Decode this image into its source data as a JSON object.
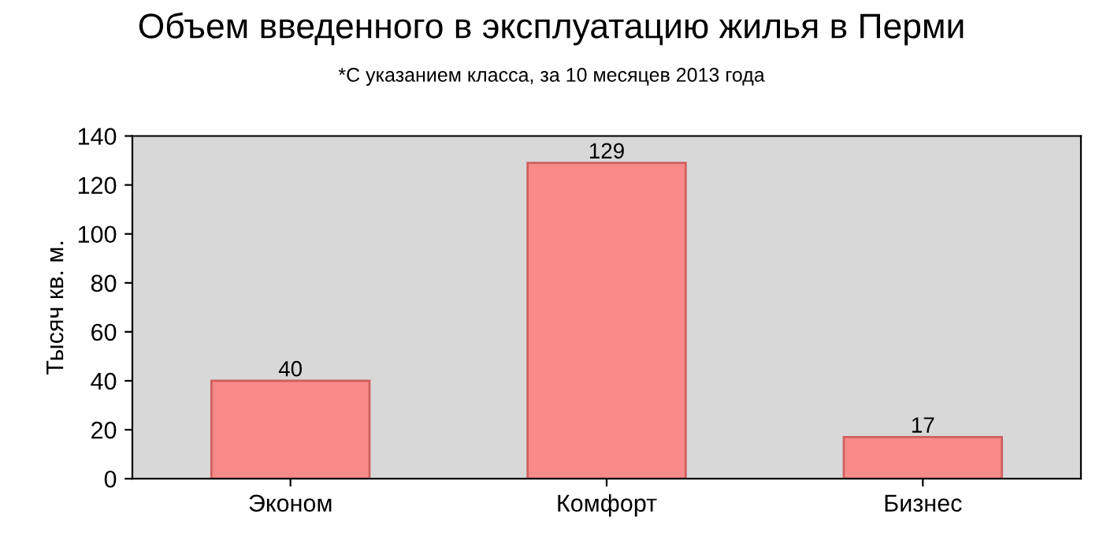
{
  "chart_data": {
    "type": "bar",
    "title": "Объем введенного в эксплуатацию жилья в Перми",
    "subtitle": "*С указанием класса, за 10 месяцев 2013 года",
    "ylabel": "Тысяч кв. м.",
    "categories": [
      "Эконом",
      "Комфорт",
      "Бизнес"
    ],
    "values": [
      40,
      129,
      17
    ],
    "color": "#f88a8a",
    "ylim": [
      0,
      140
    ],
    "yticks": [
      0,
      20,
      40,
      60,
      80,
      100,
      120,
      140
    ],
    "data_labels": true
  }
}
